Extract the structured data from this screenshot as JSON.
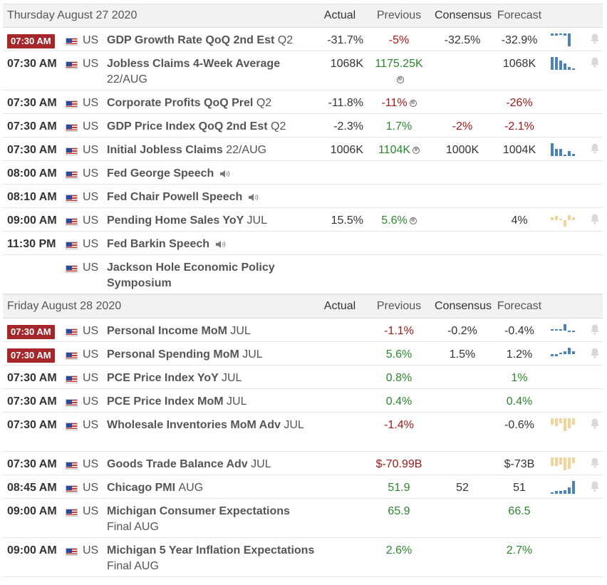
{
  "sections": [
    {
      "date": "Thursday August 27 2020",
      "headers": {
        "actual": "Actual",
        "previous": "Previous",
        "consensus": "Consensus",
        "forecast": "Forecast"
      },
      "rows": [
        {
          "time": "07:30 AM",
          "badge": true,
          "country": "US",
          "event": "GDP Growth Rate QoQ 2nd Est",
          "period": "Q2",
          "actual": "-31.7%",
          "previous": "-5%",
          "previous_tone": "neg",
          "consensus": "-32.5%",
          "forecast": "-32.9%",
          "forecast_tone": "neu",
          "chart": {
            "tone": "blue",
            "bars": [
              -0.3,
              -0.3,
              -0.1,
              -0.3,
              -2.0
            ]
          },
          "bell": true
        },
        {
          "time": "07:30 AM",
          "country": "US",
          "event": "Jobless Claims 4-Week Average",
          "period": "22/AUG",
          "wrap": true,
          "actual": "1068K",
          "previous": "1175.25K",
          "previous_tone": "pos",
          "previous_revised": true,
          "consensus": "",
          "forecast": "1068K",
          "forecast_tone": "neu",
          "chart": {
            "tone": "blue",
            "bars": [
              1.6,
              1.6,
              1.2,
              0.8,
              0.35,
              0.15
            ]
          },
          "bell": true
        },
        {
          "time": "07:30 AM",
          "country": "US",
          "event": "Corporate Profits QoQ Prel",
          "period": "Q2",
          "actual": "-11.8%",
          "previous": "-11%",
          "previous_tone": "neg",
          "previous_revised": true,
          "consensus": "",
          "forecast": "-26%",
          "forecast_tone": "neg",
          "chart": null,
          "bell": false
        },
        {
          "time": "07:30 AM",
          "country": "US",
          "event": "GDP Price Index QoQ 2nd Est",
          "period": "Q2",
          "actual": "-2.3%",
          "previous": "1.7%",
          "previous_tone": "pos",
          "consensus": "-2%",
          "consensus_tone": "neg",
          "forecast": "-2.1%",
          "forecast_tone": "neg",
          "chart": null,
          "bell": false
        },
        {
          "time": "07:30 AM",
          "country": "US",
          "event": "Initial Jobless Claims",
          "period": "22/AUG",
          "actual": "1006K",
          "previous": "1104K",
          "previous_tone": "pos",
          "previous_revised": true,
          "consensus": "1000K",
          "forecast": "1004K",
          "forecast_tone": "neu",
          "chart": {
            "tone": "blue",
            "bars": [
              1.5,
              0.8,
              0.8,
              0.2,
              0.6,
              0.25
            ]
          },
          "bell": true
        },
        {
          "time": "08:00 AM",
          "country": "US",
          "event": "Fed George Speech",
          "period": "",
          "speech": true,
          "actual": "",
          "previous": "",
          "consensus": "",
          "forecast": "",
          "chart": null,
          "bell": false
        },
        {
          "time": "08:10 AM",
          "country": "US",
          "event": "Fed Chair Powell Speech",
          "period": "",
          "speech": true,
          "actual": "",
          "previous": "",
          "consensus": "",
          "forecast": "",
          "chart": null,
          "bell": false
        },
        {
          "time": "09:00 AM",
          "country": "US",
          "event": "Pending Home Sales YoY",
          "period": "JUL",
          "actual": "15.5%",
          "previous": "5.6%",
          "previous_tone": "pos",
          "previous_revised": true,
          "consensus": "",
          "forecast": "4%",
          "forecast_tone": "neu",
          "chart": {
            "tone": "beige",
            "bars": [
              0.3,
              0.4,
              0.1,
              -0.6,
              0.5,
              0.3
            ]
          },
          "bell": true
        },
        {
          "time": "11:30 PM",
          "country": "US",
          "event": "Fed Barkin Speech",
          "period": "",
          "speech": true,
          "actual": "",
          "previous": "",
          "consensus": "",
          "forecast": "",
          "chart": null,
          "bell": false
        },
        {
          "time": "",
          "country": "US",
          "event": "Jackson Hole Economic Policy Symposium",
          "period": "",
          "wrap": true,
          "actual": "",
          "previous": "",
          "consensus": "",
          "forecast": "",
          "chart": null,
          "bell": false
        }
      ]
    },
    {
      "date": "Friday August 28 2020",
      "headers": {
        "actual": "Actual",
        "previous": "Previous",
        "consensus": "Consensus",
        "forecast": "Forecast"
      },
      "rows": [
        {
          "time": "07:30 AM",
          "badge": true,
          "country": "US",
          "event": "Personal Income MoM",
          "period": "JUL",
          "actual": "",
          "previous": "-1.1%",
          "previous_tone": "neg",
          "consensus": "-0.2%",
          "forecast": "-0.4%",
          "forecast_tone": "neu",
          "chart": {
            "tone": "blue",
            "bars": [
              0.1,
              0.1,
              0,
              1.0,
              -0.2,
              -0.1
            ]
          },
          "bell": true
        },
        {
          "time": "07:30 AM",
          "badge": true,
          "country": "US",
          "event": "Personal Spending MoM",
          "period": "JUL",
          "actual": "",
          "previous": "5.6%",
          "previous_tone": "pos",
          "consensus": "1.5%",
          "forecast": "1.2%",
          "forecast_tone": "neu",
          "chart": {
            "tone": "blue",
            "bars": [
              -0.2,
              -0.2,
              0,
              0.3,
              0.6,
              0.3
            ]
          },
          "bell": true
        },
        {
          "time": "07:30 AM",
          "country": "US",
          "event": "PCE Price Index YoY",
          "period": "JUL",
          "actual": "",
          "previous": "0.8%",
          "previous_tone": "pos",
          "consensus": "",
          "forecast": "1%",
          "forecast_tone": "pos",
          "chart": null,
          "bell": false
        },
        {
          "time": "07:30 AM",
          "country": "US",
          "event": "PCE Price Index MoM",
          "period": "JUL",
          "actual": "",
          "previous": "0.4%",
          "previous_tone": "pos",
          "consensus": "",
          "forecast": "0.4%",
          "forecast_tone": "pos",
          "chart": null,
          "bell": false
        },
        {
          "time": "07:30 AM",
          "country": "US",
          "event": "Wholesale Inventories MoM Adv",
          "period": "JUL",
          "wrap": true,
          "actual": "",
          "previous": "-1.4%",
          "previous_tone": "neg",
          "consensus": "",
          "forecast": "-0.6%",
          "forecast_tone": "neu",
          "chart": {
            "tone": "beige",
            "bars": [
              -0.4,
              -0.5,
              -0.3,
              -0.8,
              -0.6,
              -0.4
            ]
          },
          "bell": true
        },
        {
          "time": "07:30 AM",
          "country": "US",
          "event": "Goods Trade Balance Adv",
          "period": "JUL",
          "actual": "",
          "previous": "$-70.99B",
          "previous_tone": "neg",
          "consensus": "",
          "forecast": "$-73B",
          "forecast_tone": "neu",
          "chart": {
            "tone": "beige",
            "bars": [
              -0.6,
              -0.6,
              -0.5,
              -0.9,
              -0.8,
              -0.4
            ]
          },
          "bell": true
        },
        {
          "time": "08:45 AM",
          "country": "US",
          "event": "Chicago PMI",
          "period": "AUG",
          "actual": "",
          "previous": "51.9",
          "previous_tone": "pos",
          "consensus": "52",
          "forecast": "51",
          "forecast_tone": "neu",
          "chart": {
            "tone": "blue",
            "bars": [
              0.1,
              0.2,
              0.2,
              0.3,
              0.5,
              1.0
            ]
          },
          "bell": true
        },
        {
          "time": "09:00 AM",
          "country": "US",
          "event": "Michigan Consumer Expectations",
          "period": "Final AUG",
          "wrap": true,
          "actual": "",
          "previous": "65.9",
          "previous_tone": "pos",
          "consensus": "",
          "forecast": "66.5",
          "forecast_tone": "pos",
          "chart": null,
          "bell": false
        },
        {
          "time": "09:00 AM",
          "country": "US",
          "event": "Michigan 5 Year Inflation Expectations",
          "period": "Final AUG",
          "wrap": true,
          "actual": "",
          "previous": "2.6%",
          "previous_tone": "pos",
          "consensus": "",
          "forecast": "2.7%",
          "forecast_tone": "pos",
          "chart": null,
          "bell": false
        }
      ]
    }
  ],
  "colors": {
    "blue": "#4a82bb",
    "beige": "#f2d49a",
    "negative": "#a01919",
    "positive": "#2d862d",
    "badge": "#a5272a"
  },
  "icons": {
    "flag": "us-flag-icon",
    "speech": "speaker-icon",
    "bell": "bell-icon",
    "revised": "revised-icon"
  }
}
